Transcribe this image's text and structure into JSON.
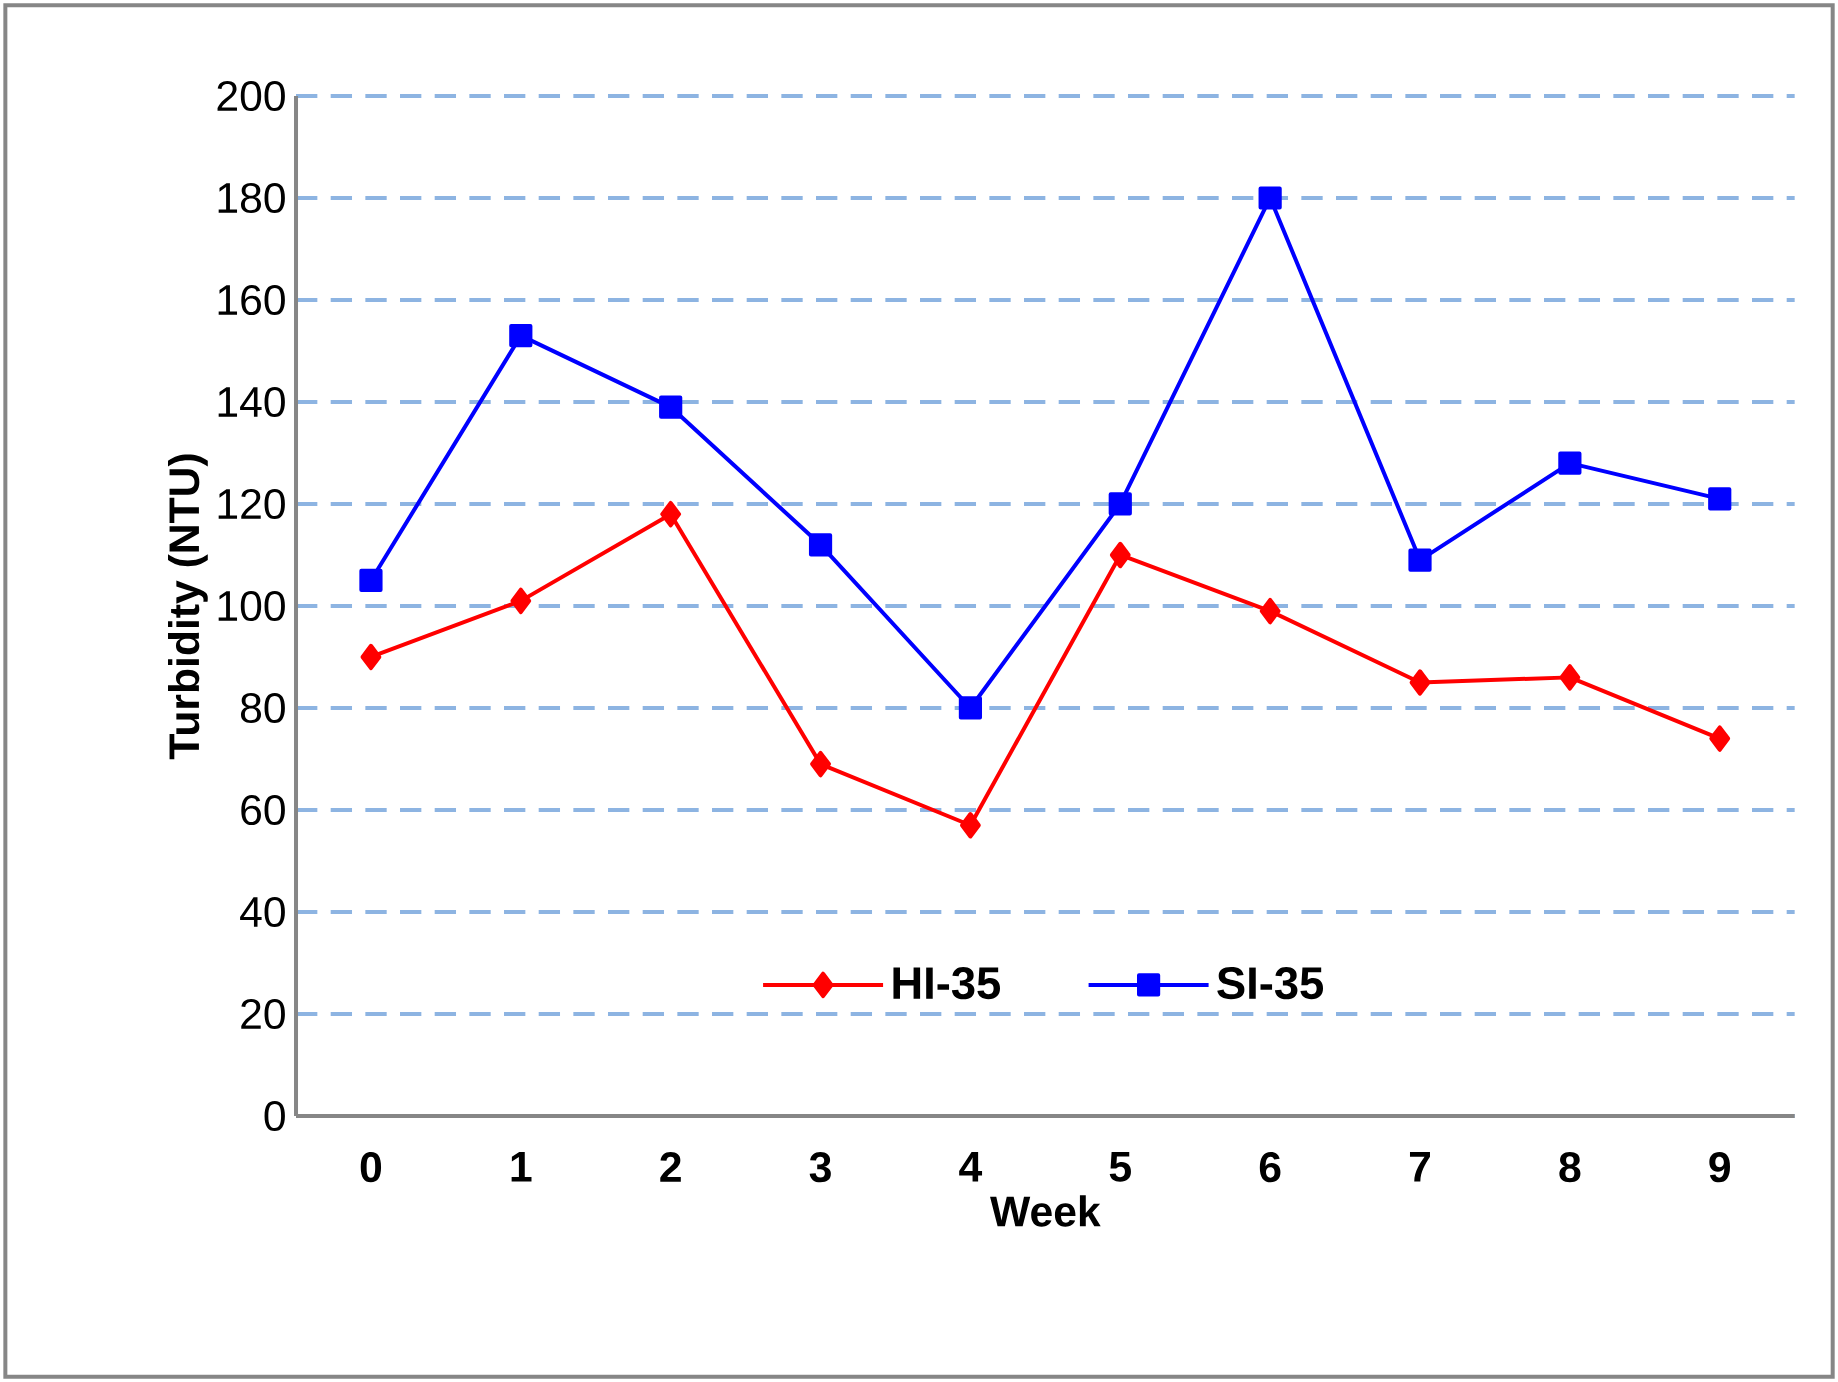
{
  "chart_data": {
    "type": "line",
    "xlabel": "Week",
    "ylabel": "Turbidity (NTU)",
    "categories": [
      "0",
      "1",
      "2",
      "3",
      "4",
      "5",
      "6",
      "7",
      "8",
      "9"
    ],
    "series": [
      {
        "name": "HI-35",
        "color": "#ff0000",
        "marker": "diamond",
        "values": [
          90,
          101,
          118,
          69,
          57,
          110,
          99,
          85,
          86,
          74
        ]
      },
      {
        "name": "SI-35",
        "color": "#0000ff",
        "marker": "square",
        "values": [
          105,
          153,
          139,
          112,
          80,
          120,
          180,
          109,
          128,
          121
        ]
      }
    ],
    "ylim": [
      0,
      200
    ],
    "yticks": [
      0,
      20,
      40,
      60,
      80,
      100,
      120,
      140,
      160,
      180,
      200
    ],
    "grid": "y",
    "legend": "bottom",
    "line_style": "solid"
  }
}
